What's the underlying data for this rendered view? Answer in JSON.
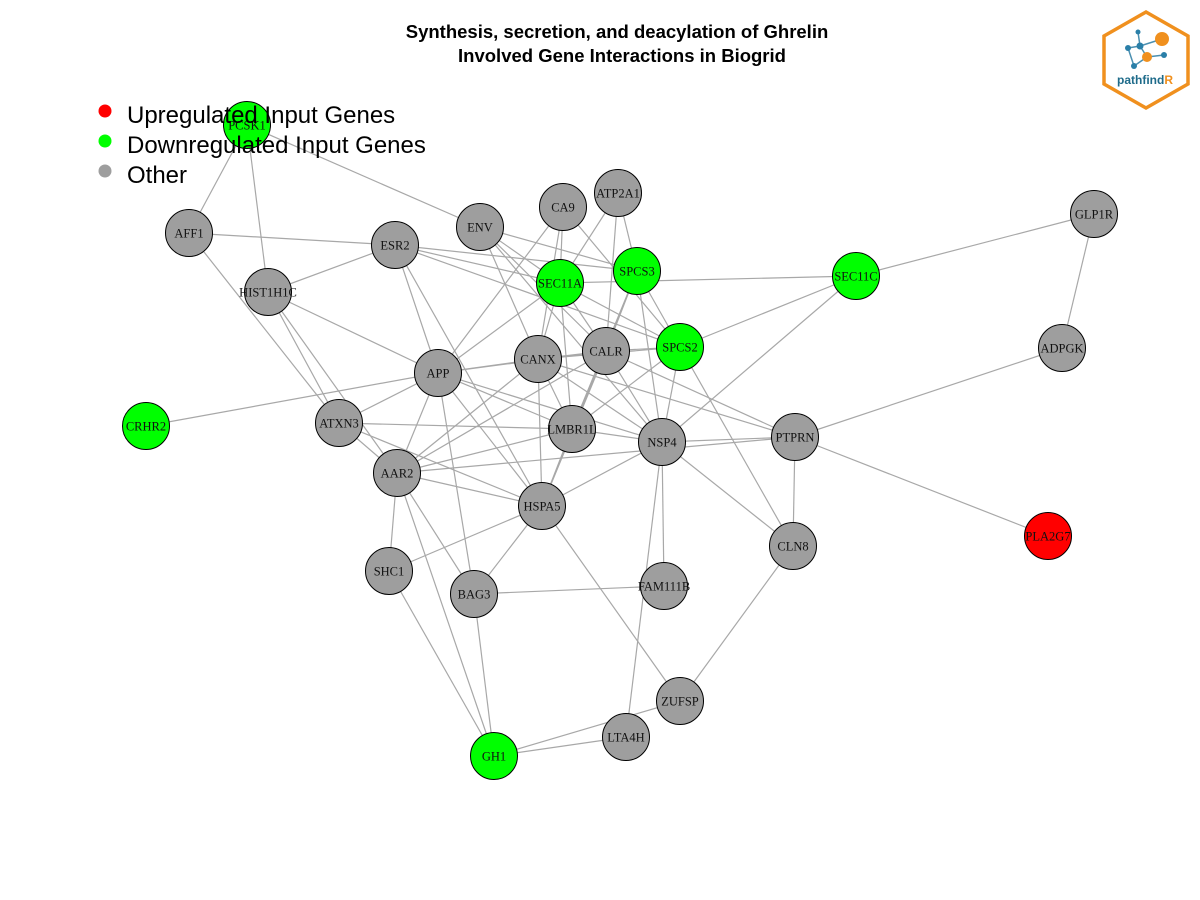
{
  "title": {
    "line1": "Synthesis, secretion, and deacylation of Ghrelin",
    "line2": "Involved Gene Interactions in Biogrid"
  },
  "legend": [
    {
      "label": "Upregulated Input Genes",
      "color": "#ff0000"
    },
    {
      "label": "Downregulated Input Genes",
      "color": "#00ff00"
    },
    {
      "label": "Other",
      "color": "#9e9e9e"
    }
  ],
  "logo": {
    "text_main": "pathfind",
    "text_accent": "R",
    "accent_color": "#f0901e",
    "main_color": "#1e6b8a"
  },
  "colors": {
    "up": "#ff0000",
    "down": "#00ff00",
    "other": "#9e9e9e",
    "edge": "#a8a8a8"
  },
  "nodes": [
    {
      "id": "PCSK1",
      "status": "down"
    },
    {
      "id": "AFF1",
      "status": "other"
    },
    {
      "id": "HIST1H1C",
      "status": "other"
    },
    {
      "id": "ESR2",
      "status": "other"
    },
    {
      "id": "ENV",
      "status": "other"
    },
    {
      "id": "CA9",
      "status": "other"
    },
    {
      "id": "ATP2A1",
      "status": "other"
    },
    {
      "id": "SEC11A",
      "status": "down"
    },
    {
      "id": "SPCS3",
      "status": "down"
    },
    {
      "id": "SEC11C",
      "status": "down"
    },
    {
      "id": "GLP1R",
      "status": "other"
    },
    {
      "id": "ADPGK",
      "status": "other"
    },
    {
      "id": "SPCS2",
      "status": "down"
    },
    {
      "id": "CALR",
      "status": "other"
    },
    {
      "id": "CANX",
      "status": "other"
    },
    {
      "id": "APP",
      "status": "other"
    },
    {
      "id": "CRHR2",
      "status": "down"
    },
    {
      "id": "ATXN3",
      "status": "other"
    },
    {
      "id": "LMBR1L",
      "status": "other"
    },
    {
      "id": "NSP4",
      "status": "other"
    },
    {
      "id": "PTPRN",
      "status": "other"
    },
    {
      "id": "PLA2G7",
      "status": "up"
    },
    {
      "id": "AAR2",
      "status": "other"
    },
    {
      "id": "HSPA5",
      "status": "other"
    },
    {
      "id": "CLN8",
      "status": "other"
    },
    {
      "id": "SHC1",
      "status": "other"
    },
    {
      "id": "BAG3",
      "status": "other"
    },
    {
      "id": "FAM111B",
      "status": "other"
    },
    {
      "id": "ZUFSP",
      "status": "other"
    },
    {
      "id": "LTA4H",
      "status": "other"
    },
    {
      "id": "GH1",
      "status": "down"
    }
  ],
  "edges": [
    [
      "PCSK1",
      "AFF1"
    ],
    [
      "PCSK1",
      "HIST1H1C"
    ],
    [
      "PCSK1",
      "ENV"
    ],
    [
      "AFF1",
      "ESR2"
    ],
    [
      "AFF1",
      "ATXN3"
    ],
    [
      "HIST1H1C",
      "ESR2"
    ],
    [
      "HIST1H1C",
      "APP"
    ],
    [
      "HIST1H1C",
      "AAR2"
    ],
    [
      "HIST1H1C",
      "ATXN3"
    ],
    [
      "ESR2",
      "SPCS3"
    ],
    [
      "ESR2",
      "SPCS2"
    ],
    [
      "ESR2",
      "SEC11A"
    ],
    [
      "ESR2",
      "APP"
    ],
    [
      "ESR2",
      "HSPA5"
    ],
    [
      "ENV",
      "SEC11A"
    ],
    [
      "ENV",
      "SPCS3"
    ],
    [
      "ENV",
      "CANX"
    ],
    [
      "ENV",
      "CALR"
    ],
    [
      "ENV",
      "NSP4"
    ],
    [
      "CA9",
      "SEC11A"
    ],
    [
      "CA9",
      "SPCS2"
    ],
    [
      "CA9",
      "APP"
    ],
    [
      "CA9",
      "CANX"
    ],
    [
      "ATP2A1",
      "SPCS3"
    ],
    [
      "ATP2A1",
      "SEC11A"
    ],
    [
      "ATP2A1",
      "CALR"
    ],
    [
      "SEC11A",
      "SEC11C"
    ],
    [
      "SEC11A",
      "CANX"
    ],
    [
      "SEC11A",
      "CALR"
    ],
    [
      "SEC11A",
      "SPCS2"
    ],
    [
      "SEC11A",
      "LMBR1L"
    ],
    [
      "SEC11A",
      "APP"
    ],
    [
      "SPCS3",
      "SPCS2"
    ],
    [
      "SPCS3",
      "CALR"
    ],
    [
      "SPCS3",
      "NSP4"
    ],
    [
      "SPCS3",
      "HSPA5"
    ],
    [
      "SPCS3",
      "LMBR1L"
    ],
    [
      "SEC11C",
      "GLP1R"
    ],
    [
      "SEC11C",
      "SPCS2"
    ],
    [
      "SEC11C",
      "NSP4"
    ],
    [
      "GLP1R",
      "ADPGK"
    ],
    [
      "ADPGK",
      "PTPRN"
    ],
    [
      "SPCS2",
      "CALR"
    ],
    [
      "SPCS2",
      "NSP4"
    ],
    [
      "SPCS2",
      "LMBR1L"
    ],
    [
      "SPCS2",
      "CLN8"
    ],
    [
      "SPCS2",
      "CANX"
    ],
    [
      "CALR",
      "CANX"
    ],
    [
      "CALR",
      "LMBR1L"
    ],
    [
      "CALR",
      "NSP4"
    ],
    [
      "CALR",
      "PTPRN"
    ],
    [
      "CALR",
      "HSPA5"
    ],
    [
      "CALR",
      "APP"
    ],
    [
      "CALR",
      "AAR2"
    ],
    [
      "CANX",
      "APP"
    ],
    [
      "CANX",
      "LMBR1L"
    ],
    [
      "CANX",
      "NSP4"
    ],
    [
      "CANX",
      "HSPA5"
    ],
    [
      "CANX",
      "PTPRN"
    ],
    [
      "CANX",
      "AAR2"
    ],
    [
      "APP",
      "CRHR2"
    ],
    [
      "APP",
      "ATXN3"
    ],
    [
      "APP",
      "AAR2"
    ],
    [
      "APP",
      "HSPA5"
    ],
    [
      "APP",
      "NSP4"
    ],
    [
      "APP",
      "LMBR1L"
    ],
    [
      "APP",
      "BAG3"
    ],
    [
      "ATXN3",
      "AAR2"
    ],
    [
      "ATXN3",
      "HSPA5"
    ],
    [
      "ATXN3",
      "LMBR1L"
    ],
    [
      "LMBR1L",
      "NSP4"
    ],
    [
      "LMBR1L",
      "HSPA5"
    ],
    [
      "LMBR1L",
      "AAR2"
    ],
    [
      "NSP4",
      "PTPRN"
    ],
    [
      "NSP4",
      "HSPA5"
    ],
    [
      "NSP4",
      "FAM111B"
    ],
    [
      "NSP4",
      "LTA4H"
    ],
    [
      "NSP4",
      "CLN8"
    ],
    [
      "PTPRN",
      "PLA2G7"
    ],
    [
      "PTPRN",
      "CLN8"
    ],
    [
      "PTPRN",
      "AAR2"
    ],
    [
      "AAR2",
      "SHC1"
    ],
    [
      "AAR2",
      "BAG3"
    ],
    [
      "AAR2",
      "GH1"
    ],
    [
      "AAR2",
      "HSPA5"
    ],
    [
      "HSPA5",
      "SHC1"
    ],
    [
      "HSPA5",
      "BAG3"
    ],
    [
      "HSPA5",
      "ZUFSP"
    ],
    [
      "CLN8",
      "ZUFSP"
    ],
    [
      "SHC1",
      "GH1"
    ],
    [
      "BAG3",
      "GH1"
    ],
    [
      "BAG3",
      "FAM111B"
    ],
    [
      "ZUFSP",
      "GH1"
    ],
    [
      "LTA4H",
      "GH1"
    ]
  ]
}
